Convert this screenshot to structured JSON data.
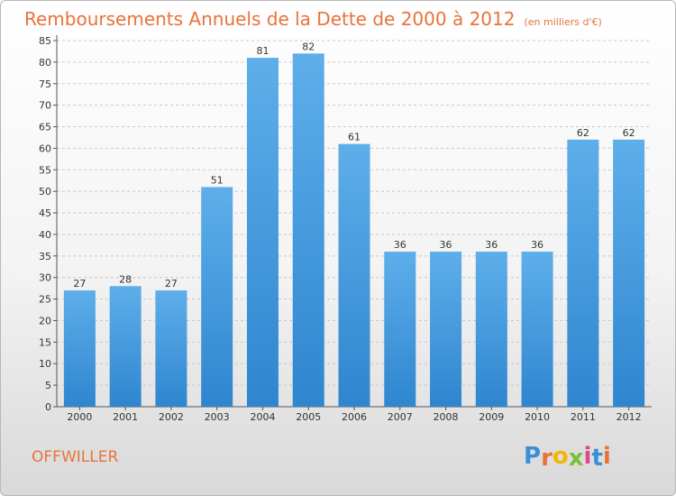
{
  "title": "Remboursements Annuels de la Dette de 2000 à 2012",
  "subtitle": "(en milliers d'€)",
  "commune": "OFFWILLER",
  "logo": {
    "text": "Proxiti",
    "colors": [
      "#3a8fd6",
      "#e8733a",
      "#f2b705",
      "#7cbf3a",
      "#e04a8a",
      "#3a8fd6",
      "#e8733a"
    ]
  },
  "colors": {
    "bar": "#3d95dd",
    "bar_light": "#5eaeea",
    "accent": "#e8733a",
    "grid": "#c8c8c8"
  },
  "chart_data": {
    "type": "bar",
    "categories": [
      "2000",
      "2001",
      "2002",
      "2003",
      "2004",
      "2005",
      "2006",
      "2007",
      "2008",
      "2009",
      "2010",
      "2011",
      "2012"
    ],
    "values": [
      27,
      28,
      27,
      51,
      81,
      82,
      61,
      36,
      36,
      36,
      36,
      62,
      62
    ],
    "ylim": [
      0,
      85
    ],
    "yticks": [
      0,
      5,
      10,
      15,
      20,
      25,
      30,
      35,
      40,
      45,
      50,
      55,
      60,
      65,
      70,
      75,
      80,
      85
    ],
    "grid": true,
    "data_labels": true
  }
}
